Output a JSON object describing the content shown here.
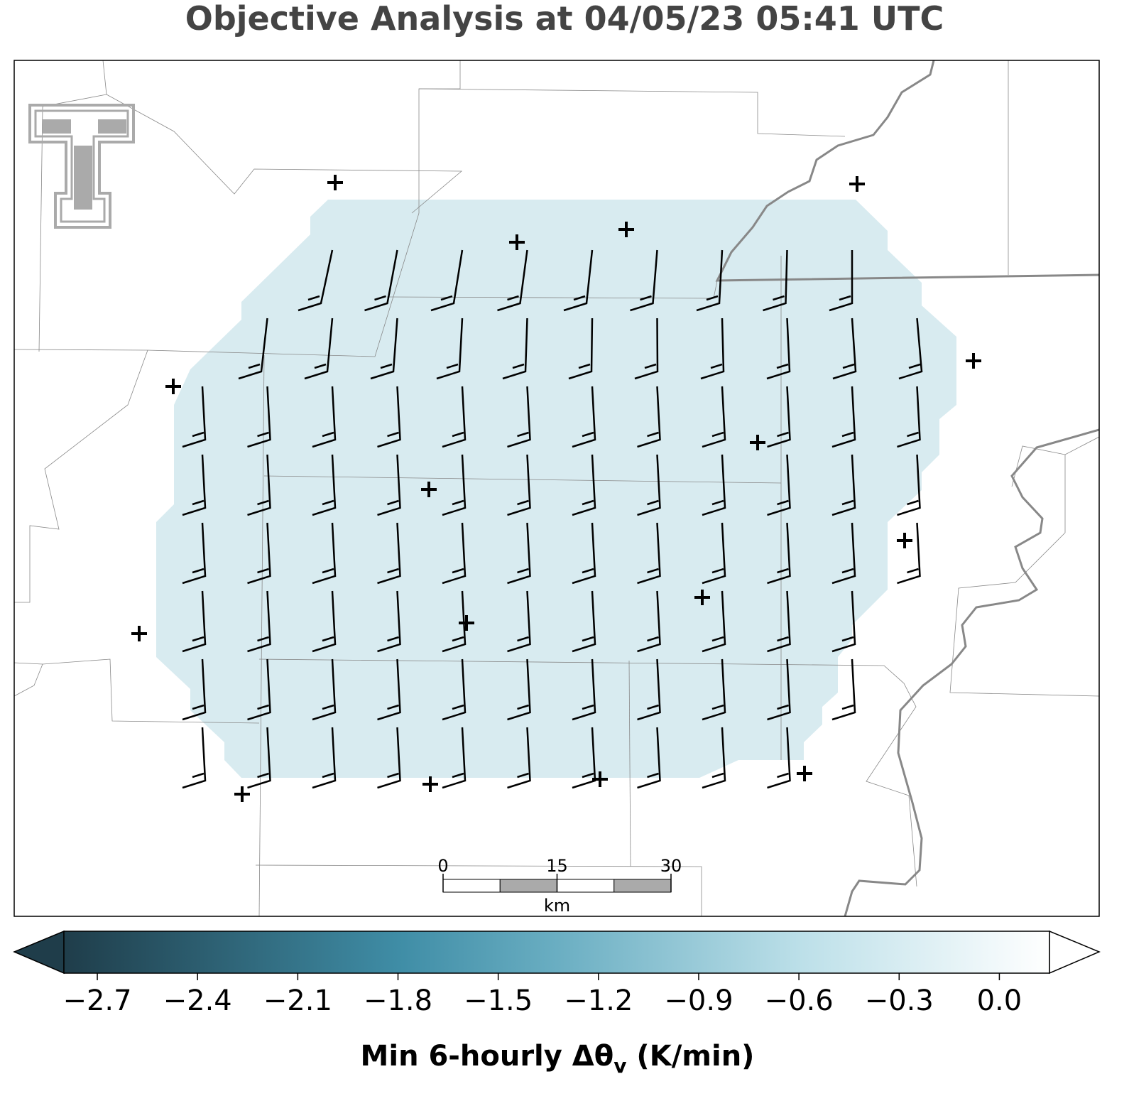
{
  "title": "Objective Analysis at 04/05/23 05:41 UTC",
  "scale_bar": {
    "ticks": [
      0,
      15,
      30
    ],
    "unit": "km",
    "xlim": [
      0,
      30
    ]
  },
  "colorbar": {
    "lim": [
      -2.8,
      0.15
    ],
    "ticks": [
      {
        "value": -2.7,
        "label": "−2.7"
      },
      {
        "value": -2.4,
        "label": "−2.4"
      },
      {
        "value": -2.1,
        "label": "−2.1"
      },
      {
        "value": -1.8,
        "label": "−1.8"
      },
      {
        "value": -1.5,
        "label": "−1.5"
      },
      {
        "value": -1.2,
        "label": "−1.2"
      },
      {
        "value": -0.9,
        "label": "−0.9"
      },
      {
        "value": -0.6,
        "label": "−0.6"
      },
      {
        "value": -0.3,
        "label": "−0.3"
      },
      {
        "value": 0.0,
        "label": "0.0"
      }
    ],
    "label": {
      "main": "Min 6-hourly Δθ",
      "subscript": "v",
      "unit": " (K/min)"
    }
  }
}
